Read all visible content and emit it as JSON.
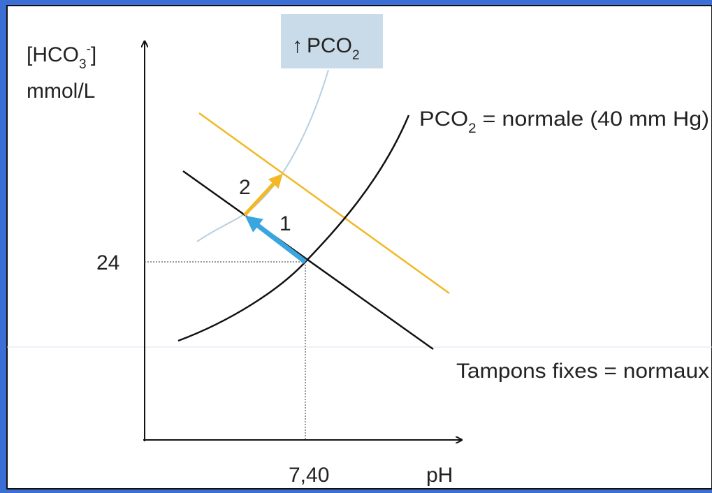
{
  "diagram": {
    "y_label": {
      "main": "[HCO",
      "sub": "3",
      "sup": "-",
      "end": "]"
    },
    "y_unit": "mmol/L",
    "x_label": "pH",
    "y_value": "24",
    "x_value": "7,40",
    "box": {
      "arrow": "↑",
      "text": "PCO",
      "sub": "2"
    },
    "curve_label": {
      "text": "PCO",
      "sub": "2",
      "rest": " = normale (40 mm Hg)"
    },
    "line_label": "Tampons fixes = normaux",
    "steps": [
      "1",
      "2"
    ]
  }
}
